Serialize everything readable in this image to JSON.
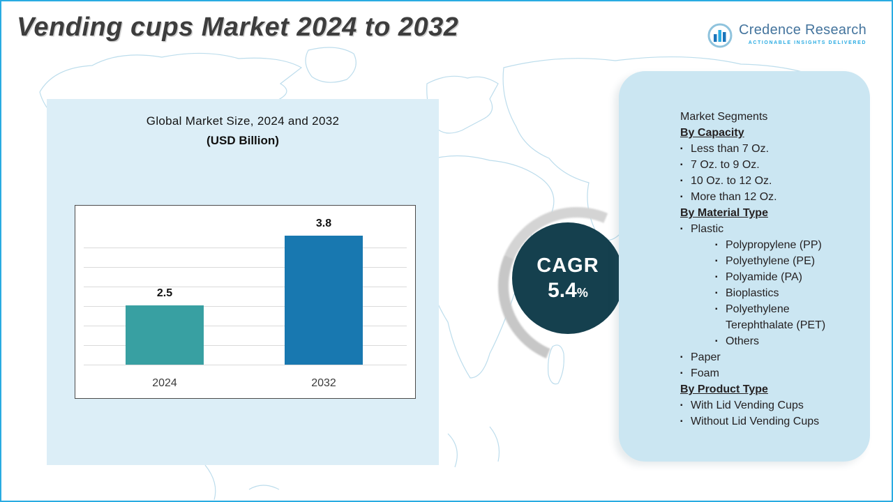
{
  "title": "Vending cups Market 2024 to 2032",
  "logo": {
    "name": "Credence Research",
    "tagline": "Actionable Insights Delivered"
  },
  "chart_data": {
    "type": "bar",
    "title": "Global Market Size, 2024 and 2032",
    "subtitle": "(USD Billion)",
    "categories": [
      "2024",
      "2032"
    ],
    "values": [
      2.5,
      3.8
    ],
    "data_labels": [
      "2.5",
      "3.8"
    ],
    "bar_colors": [
      "#38a0a2",
      "#1878b0"
    ],
    "ylim": [
      1.4,
      4.4
    ],
    "gridlines": 7,
    "grid": true,
    "legend": "none"
  },
  "cagr": {
    "label": "CAGR",
    "value": "5.4",
    "unit": "%"
  },
  "segments": {
    "title": "Market Segments",
    "items": [
      {
        "text": "By Capacity",
        "style": "heading"
      },
      {
        "text": "Less than 7 Oz.",
        "style": "bullet"
      },
      {
        "text": "7 Oz. to 9 Oz.",
        "style": "bullet"
      },
      {
        "text": "10 Oz. to 12 Oz.",
        "style": "bullet"
      },
      {
        "text": "More than 12 Oz.",
        "style": "bullet"
      },
      {
        "text": "By Material Type",
        "style": "heading"
      },
      {
        "text": "Plastic",
        "style": "bullet"
      },
      {
        "text": "Polypropylene (PP)",
        "style": "subbullet"
      },
      {
        "text": "Polyethylene (PE)",
        "style": "subbullet"
      },
      {
        "text": "Polyamide (PA)",
        "style": "subbullet"
      },
      {
        "text": "Bioplastics",
        "style": "subbullet"
      },
      {
        "text": "Polyethylene Terephthalate (PET)",
        "style": "subbullet"
      },
      {
        "text": "Others",
        "style": "subbullet"
      },
      {
        "text": "Paper",
        "style": "bullet"
      },
      {
        "text": "Foam",
        "style": "bullet"
      },
      {
        "text": "By Product Type",
        "style": "heading"
      },
      {
        "text": "With Lid Vending Cups",
        "style": "bullet"
      },
      {
        "text": "Without Lid Vending Cups",
        "style": "bullet"
      }
    ]
  },
  "colors": {
    "accent_blue": "#29abe2",
    "bar_2024": "#38a0a2",
    "bar_2032": "#1878b0",
    "cagr_circle": "#15404e",
    "left_panel": "#dceef7",
    "right_panel": "#cbe6f2"
  }
}
